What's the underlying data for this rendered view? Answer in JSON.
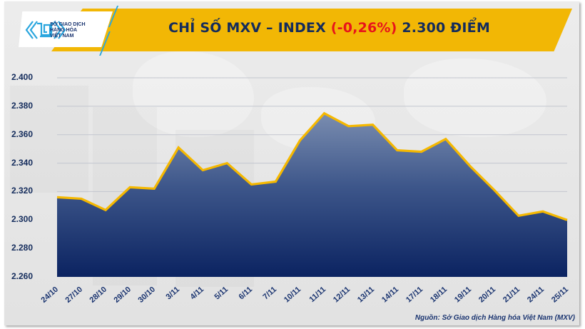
{
  "header": {
    "logo_text_lines": [
      "SỞ GIAO DỊCH",
      "HÀNG HÓA",
      "VIỆT NAM"
    ],
    "title_prefix": "CHỈ SỐ MXV – INDEX ",
    "title_change": "(-0,26%)",
    "title_suffix": " 2.300 ĐIỂM"
  },
  "source": "Nguồn: Sở Giao dịch Hàng hóa Việt Nam (MXV)",
  "colors": {
    "banner": "#f2b705",
    "title_text": "#142c5c",
    "negative": "#e8141b",
    "line": "#f5b800",
    "area_top": "#6f83a8",
    "area_bottom": "#0b2361",
    "logo_accent": "#2aa6de"
  },
  "chart_data": {
    "type": "area",
    "title": "CHỈ SỐ MXV – INDEX (-0,26%) 2.300 ĐIỂM",
    "xlabel": "",
    "ylabel": "",
    "ylim": [
      2260,
      2400
    ],
    "grid": true,
    "legend": null,
    "y_ticks": [
      "2.400",
      "2.380",
      "2.360",
      "2.340",
      "2.320",
      "2.300",
      "2.280",
      "2.260"
    ],
    "categories": [
      "24/10",
      "27/10",
      "28/10",
      "29/10",
      "30/10",
      "3/11",
      "4/11",
      "5/11",
      "6/11",
      "7/11",
      "10/11",
      "11/11",
      "12/11",
      "13/11",
      "14/11",
      "17/11",
      "18/11",
      "19/11",
      "20/11",
      "21/11",
      "24/11",
      "25/11"
    ],
    "series": [
      {
        "name": "MXV-Index",
        "values": [
          2316,
          2315,
          2307,
          2323,
          2322,
          2351,
          2335,
          2340,
          2325,
          2327,
          2356,
          2375,
          2366,
          2367,
          2349,
          2348,
          2357,
          2338,
          2321,
          2303,
          2306,
          2300
        ]
      }
    ]
  }
}
